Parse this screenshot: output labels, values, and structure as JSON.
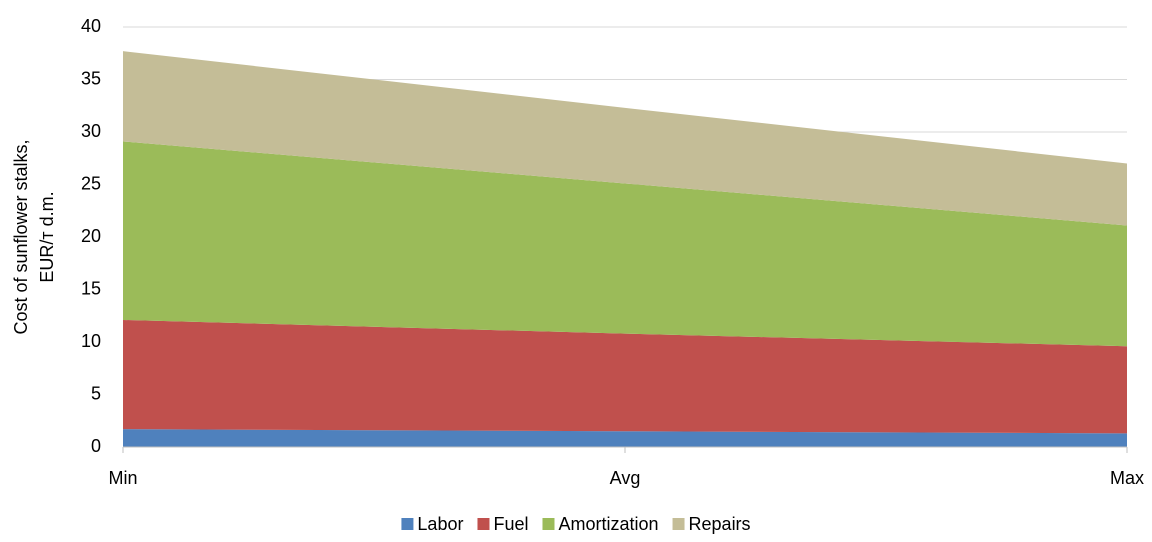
{
  "chart_data": {
    "type": "stacked_area",
    "ylabel": [
      "Cost of sunflower stalks,",
      "EUR/т d.m."
    ],
    "categories": [
      "Min",
      "Avg",
      "Max"
    ],
    "series": [
      {
        "name": "Labor",
        "color": "#4f81bd",
        "values": [
          1.7,
          1.5,
          1.3
        ]
      },
      {
        "name": "Fuel",
        "color": "#c0504d",
        "values": [
          10.4,
          9.3,
          8.3
        ]
      },
      {
        "name": "Amortization",
        "color": "#9bbb59",
        "values": [
          17.0,
          14.3,
          11.5
        ]
      },
      {
        "name": "Repairs",
        "color": "#c4bd97",
        "values": [
          8.6,
          7.2,
          5.9
        ]
      }
    ],
    "ylim": [
      0,
      40
    ],
    "yticks": [
      0,
      5,
      10,
      15,
      20,
      25,
      30,
      35,
      40
    ],
    "grid": true,
    "legend": "bottom"
  }
}
